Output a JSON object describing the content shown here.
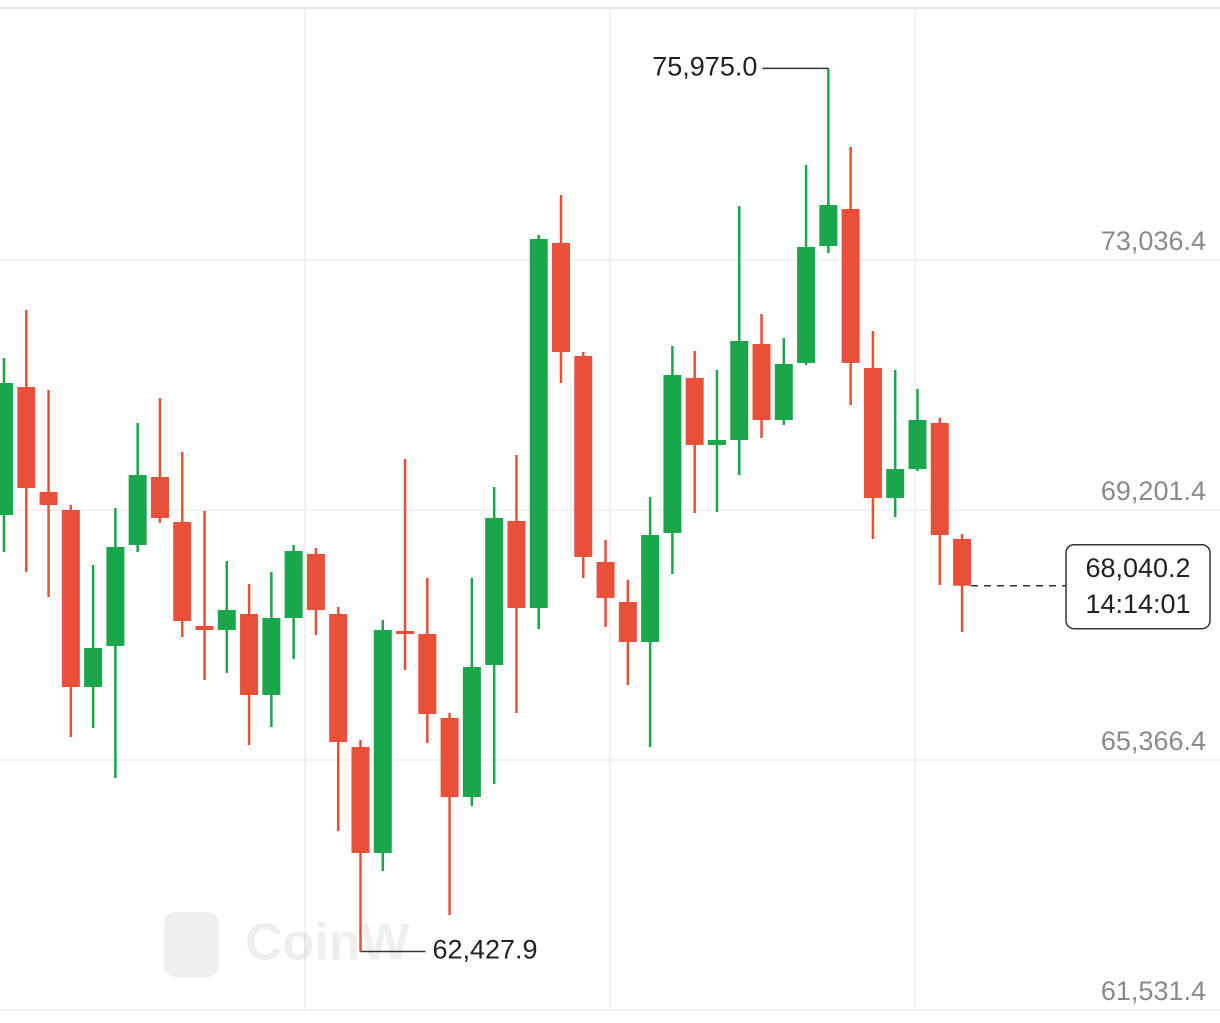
{
  "chart_data": {
    "type": "candlestick",
    "up_color": "#1aa64a",
    "down_color": "#e8503a",
    "watermark": "CoinW",
    "open": [
      69125,
      71088,
      69478,
      69202,
      66486,
      67115,
      68665,
      69708,
      69017,
      67422,
      67361,
      67606,
      66364,
      67545,
      68527,
      67606,
      65566,
      63940,
      67345,
      67299,
      66011,
      64799,
      66824,
      69033,
      67698,
      73297,
      71564,
      68404,
      67790,
      67177,
      68849,
      71226,
      70199,
      70275,
      71748,
      70582,
      71457,
      73251,
      73819,
      71380,
      69386,
      69830,
      70536,
      68757
    ],
    "high": [
      71533,
      72270,
      71042,
      69280,
      68358,
      69232,
      70536,
      70920,
      70091,
      69186,
      68419,
      68066,
      68251,
      68665,
      68619,
      67714,
      65673,
      67514,
      69984,
      68158,
      66087,
      68158,
      69554,
      70045,
      73420,
      74034,
      71625,
      68741,
      68128,
      69401,
      71717,
      71641,
      71349,
      73865,
      72208,
      71840,
      74494,
      75975.0,
      74770,
      71947,
      71349,
      71058,
      70613,
      68833
    ],
    "low": [
      68557,
      68251,
      67867,
      65719,
      65857,
      65090,
      68557,
      69002,
      67253,
      66594,
      66701,
      65597,
      65873,
      66916,
      67284,
      64277,
      62427.9,
      63664,
      66747,
      65627,
      62989,
      64661,
      64998,
      66087,
      67376,
      71150,
      68158,
      67407,
      66517,
      65566,
      68220,
      69156,
      69171,
      69738,
      70306,
      70505,
      71426,
      73144,
      70812,
      68757,
      69094,
      69800,
      68051,
      67330
    ],
    "close": [
      71150,
      69539,
      69278,
      66486,
      67085,
      68634,
      69738,
      69079,
      67499,
      67361,
      67668,
      66364,
      67545,
      68573,
      67668,
      65643,
      63940,
      67361,
      67299,
      66072,
      64799,
      66793,
      69079,
      67698,
      73359,
      71625,
      68481,
      67852,
      67177,
      68818,
      71272,
      70199,
      70275,
      71794,
      70582,
      71441,
      73236,
      73880,
      71457,
      69386,
      69830,
      70582,
      68818,
      68040.2
    ],
    "ylim": [
      61332,
      77024.8
    ],
    "yticks": [
      {
        "value": 73036.4,
        "label": "73,036.4"
      },
      {
        "value": 69201.4,
        "label": "69,201.4"
      },
      {
        "value": 65366.4,
        "label": "65,366.4"
      },
      {
        "value": 61531.4,
        "label": "61,531.4"
      }
    ],
    "grid": true,
    "high_annotation": {
      "value": 75975.0,
      "label": "75,975.0"
    },
    "low_annotation": {
      "value": 62427.9,
      "label": "62,427.9"
    },
    "last_price": {
      "value": 68040.2,
      "label": "68,040.2",
      "time": "14:14:01"
    }
  }
}
